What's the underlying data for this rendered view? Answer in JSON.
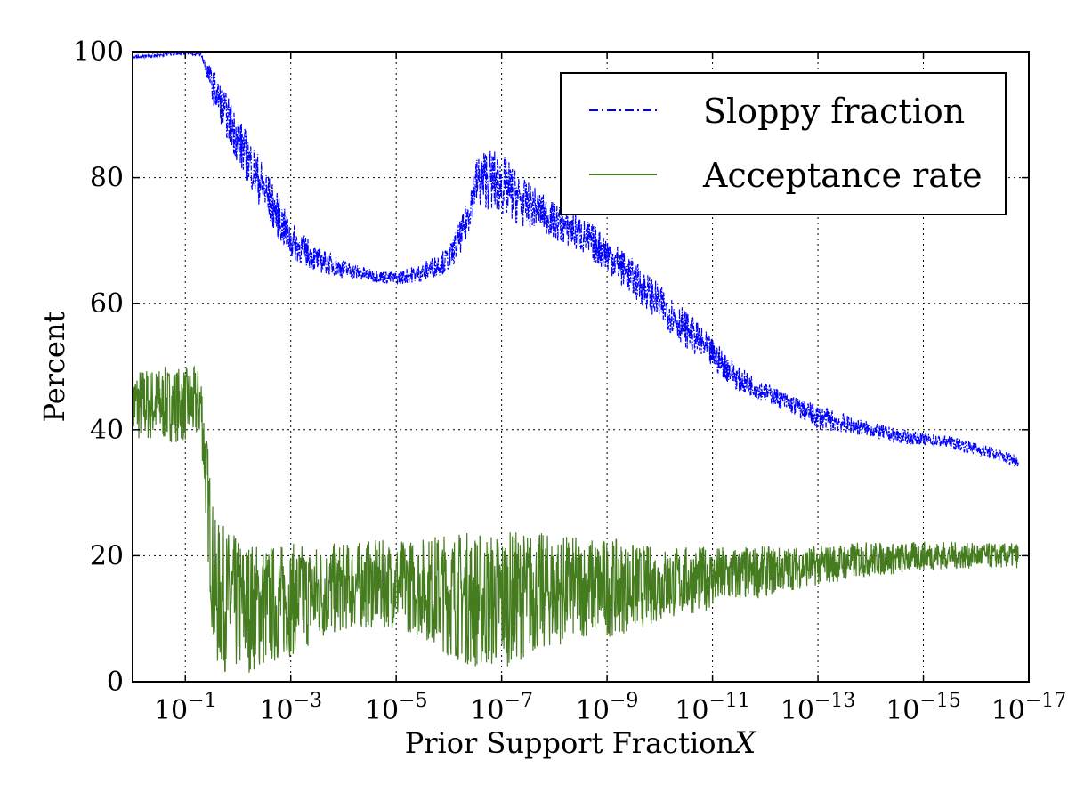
{
  "chart_data": {
    "type": "line",
    "title": "",
    "xlabel": "Prior Support Fraction",
    "xlabel_symbol": "X",
    "ylabel": "Percent",
    "x_scale": "log (decreasing)",
    "x_exponent_range": [
      0,
      -17
    ],
    "ylim": [
      0,
      100
    ],
    "grid": true,
    "legend_position": "top-right",
    "y_ticks": [
      "0",
      "20",
      "40",
      "60",
      "80",
      "100"
    ],
    "x_ticks": [
      {
        "base": "10",
        "exp": "−1",
        "logx": -1
      },
      {
        "base": "10",
        "exp": "−3",
        "logx": -3
      },
      {
        "base": "10",
        "exp": "−5",
        "logx": -5
      },
      {
        "base": "10",
        "exp": "−7",
        "logx": -7
      },
      {
        "base": "10",
        "exp": "−9",
        "logx": -9
      },
      {
        "base": "10",
        "exp": "−11",
        "logx": -11
      },
      {
        "base": "10",
        "exp": "−13",
        "logx": -13
      },
      {
        "base": "10",
        "exp": "−15",
        "logx": -15
      },
      {
        "base": "10",
        "exp": "−17",
        "logx": -17
      }
    ],
    "series": [
      {
        "name": "Sloppy fraction",
        "color": "#0000ff",
        "style": "dash-dot",
        "logx": [
          0,
          -0.5,
          -1,
          -1.3,
          -1.55,
          -2,
          -2.5,
          -3,
          -3.5,
          -4,
          -4.5,
          -5,
          -5.5,
          -6,
          -6.3,
          -6.5,
          -6.7,
          -7,
          -7.4,
          -7.7,
          -8,
          -8.5,
          -9,
          -9.5,
          -10,
          -10.5,
          -11,
          -11.5,
          -12,
          -12.5,
          -13,
          -13.5,
          -14,
          -14.5,
          -15,
          -15.5,
          -16,
          -16.8
        ],
        "mid": [
          99,
          99.5,
          99.8,
          99.5,
          94,
          86,
          78,
          70,
          67,
          65.5,
          64.5,
          64,
          65,
          67,
          72,
          79,
          80,
          79,
          76,
          75,
          73,
          71,
          68,
          64,
          60,
          56,
          52,
          48,
          46,
          44,
          42,
          41,
          40,
          39,
          38.5,
          38,
          37,
          35
        ],
        "band": [
          0.3,
          0.3,
          0.2,
          0.3,
          3,
          4,
          4,
          3,
          2,
          1.5,
          1,
          1,
          1.5,
          2,
          3,
          4,
          5,
          5,
          4,
          3,
          3,
          3,
          3,
          3,
          3,
          3,
          2.5,
          2,
          1.5,
          1.5,
          2,
          1.5,
          1.2,
          1.2,
          1,
          1,
          1,
          1
        ]
      },
      {
        "name": "Acceptance rate",
        "color": "#447c1e",
        "style": "solid",
        "logx": [
          0,
          -0.5,
          -1,
          -1.3,
          -1.55,
          -2,
          -2.5,
          -3,
          -3.5,
          -4,
          -4.5,
          -5,
          -5.5,
          -6,
          -6.5,
          -7,
          -7.5,
          -8,
          -8.5,
          -9,
          -9.5,
          -10,
          -10.5,
          -11,
          -11.5,
          -12,
          -12.5,
          -13,
          -13.5,
          -14,
          -14.5,
          -15,
          -15.5,
          -16,
          -16.8
        ],
        "mid": [
          44,
          44,
          44,
          44,
          14,
          12,
          12,
          13,
          14,
          15,
          15.5,
          15.5,
          15,
          14,
          13,
          13,
          14,
          14.5,
          15,
          15,
          15,
          15.5,
          16,
          16.5,
          17,
          17.5,
          18,
          18.5,
          19,
          19.5,
          19.5,
          20,
          20,
          20,
          20
        ],
        "band": [
          6,
          6,
          6,
          6,
          12,
          11,
          10,
          9,
          8,
          7,
          7,
          7,
          8,
          10,
          11,
          11,
          10,
          9,
          8,
          8,
          7,
          6,
          5.5,
          5,
          4.5,
          4,
          3.5,
          3.2,
          3,
          2.8,
          2.5,
          2.3,
          2.2,
          2,
          2
        ]
      }
    ]
  }
}
